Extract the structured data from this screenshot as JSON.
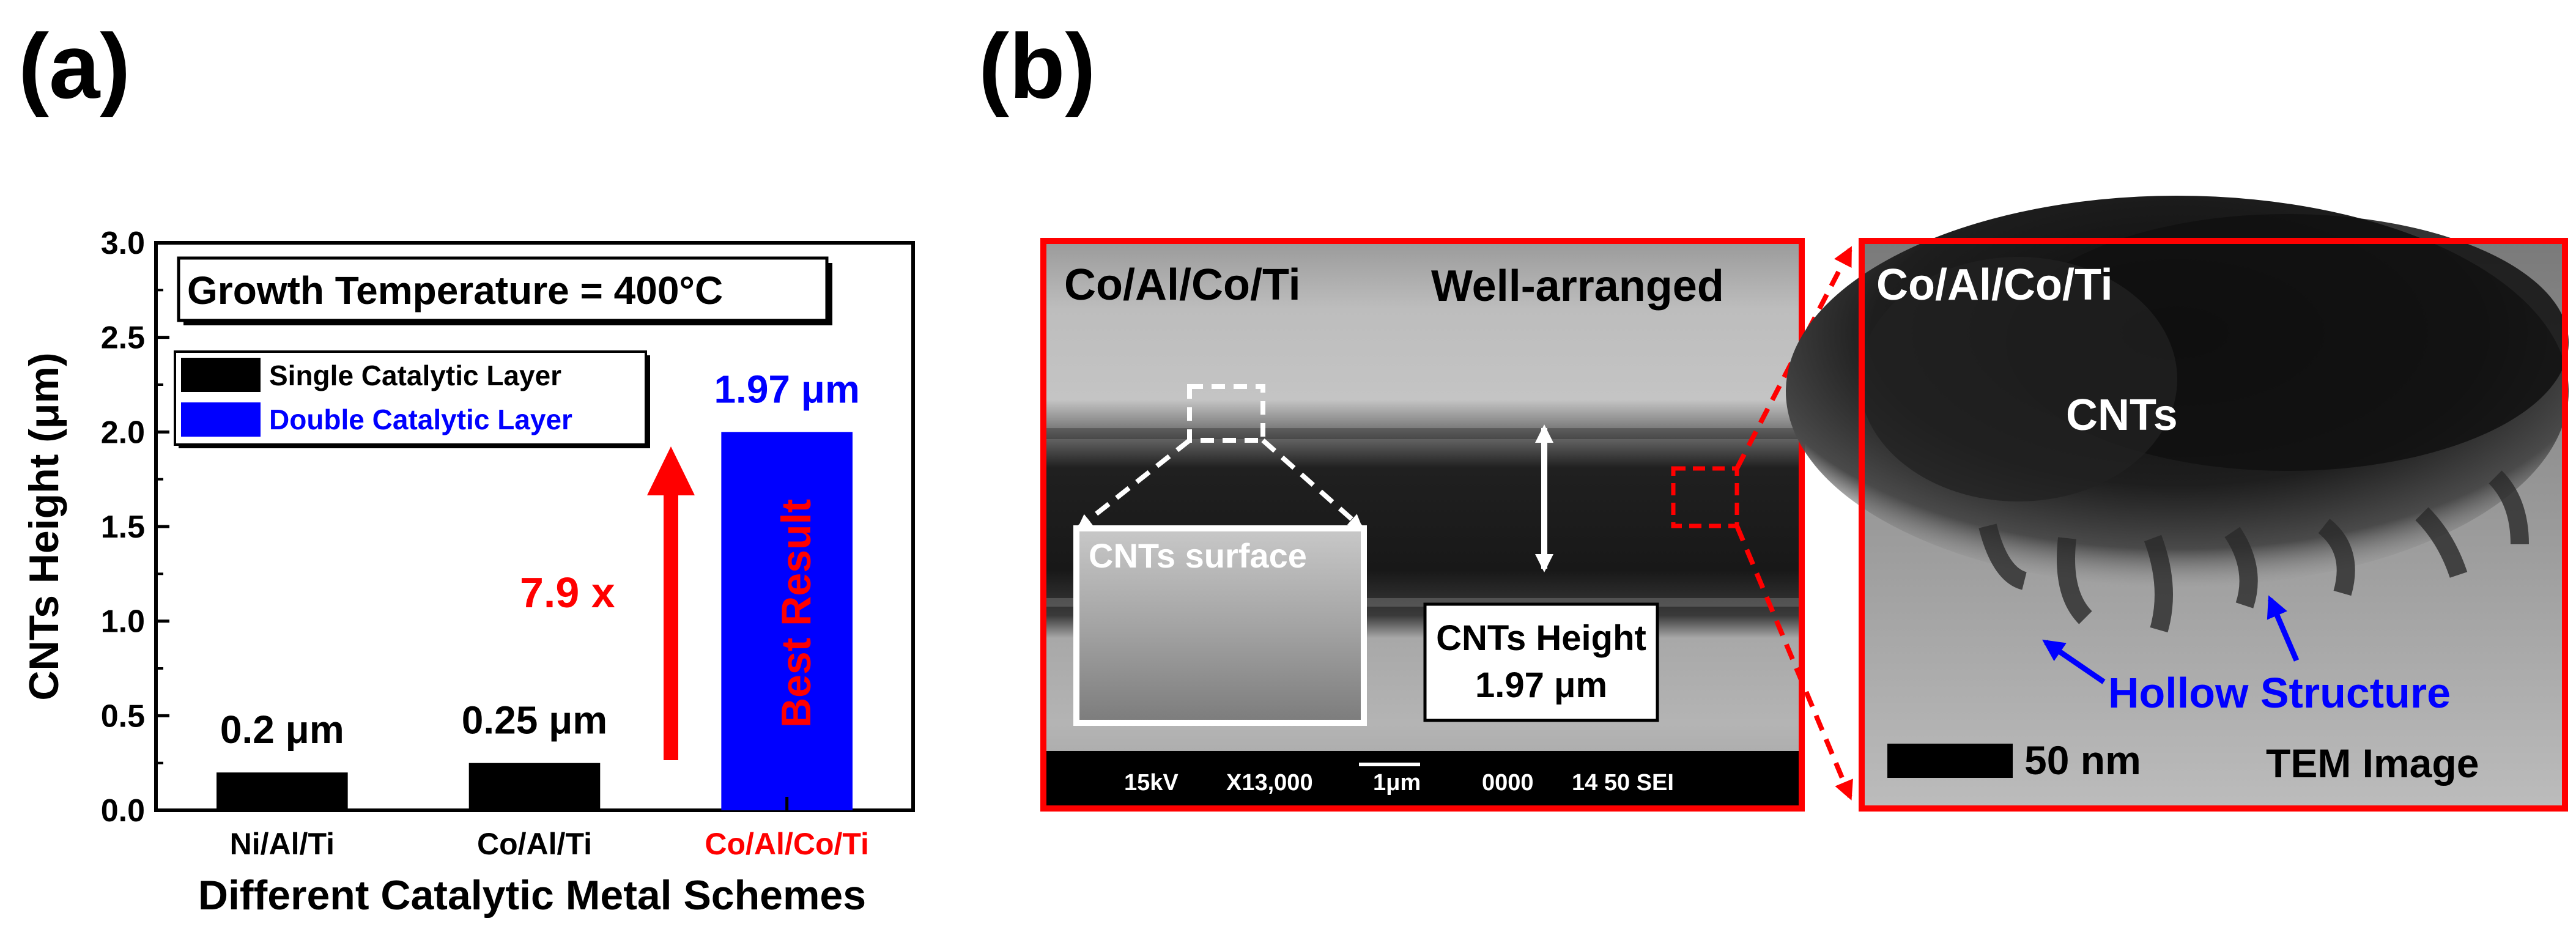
{
  "panels": {
    "a_label": "(a)",
    "b_label": "(b)"
  },
  "chart_data": {
    "type": "bar",
    "categories": [
      "Ni/Al/Ti",
      "Co/Al/Ti",
      "Co/Al/Co/Ti"
    ],
    "values": [
      0.2,
      0.25,
      2.0
    ],
    "bar_colors": [
      "#000000",
      "#000000",
      "#0000ff"
    ],
    "category_label_colors": [
      "#000000",
      "#000000",
      "#ff0000"
    ],
    "value_labels": [
      "0.2 μm",
      "0.25 μm",
      "1.97 μm"
    ],
    "value_label_colors": [
      "#000000",
      "#000000",
      "#0000ff"
    ],
    "xlabel": "Different Catalytic Metal Schemes",
    "ylabel": "CNTs Height (μm)",
    "ylim": [
      0,
      3.0
    ],
    "yticks": [
      0,
      0.5,
      1.0,
      1.5,
      2.0,
      2.5,
      3.0
    ],
    "ytick_labels": [
      "0.0",
      "0.5",
      "1.0",
      "1.5",
      "2.0",
      "2.5",
      "3.0"
    ],
    "title_box": "Growth Temperature = 400°C",
    "legend": [
      {
        "label": "Single Catalytic Layer",
        "color": "#000000",
        "text_color": "#000000"
      },
      {
        "label": "Double Catalytic Layer",
        "color": "#0000ff",
        "text_color": "#0000ff"
      }
    ],
    "annotations": {
      "ratio": "7.9 x",
      "best": "Best Result",
      "accent": "#ff0000"
    }
  },
  "sem_image": {
    "sample": "Co/Al/Co/Ti",
    "quality": "Well-arranged",
    "inset_label": "CNTs surface",
    "height_label_line1": "CNTs Height",
    "height_label_line2": "1.97 μm",
    "footer": {
      "voltage": "15kV",
      "magnification": "X13,000",
      "scale": "1μm",
      "code": "0000",
      "tag": "14 50 SEI"
    }
  },
  "tem_image": {
    "sample": "Co/Al/Co/Ti",
    "cnts_label": "CNTs",
    "hollow_label": "Hollow Structure",
    "scale_label": "50 nm",
    "caption": "TEM Image"
  }
}
